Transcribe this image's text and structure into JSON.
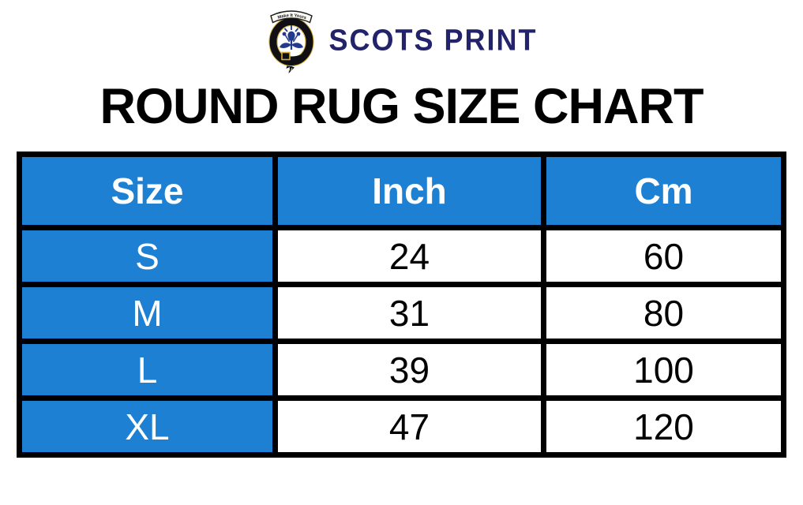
{
  "logo": {
    "brand_text": "SCOTS PRINT",
    "ribbon_text": "Make It Yours"
  },
  "title": "ROUND RUG SIZE CHART",
  "table": {
    "columns": [
      "Size",
      "Inch",
      "Cm"
    ],
    "rows": [
      [
        "S",
        "24",
        "60"
      ],
      [
        "M",
        "31",
        "80"
      ],
      [
        "L",
        "39",
        "100"
      ],
      [
        "XL",
        "47",
        "120"
      ]
    ]
  },
  "colors": {
    "accent_blue": "#1e80d2",
    "brand_navy": "#23236b",
    "border_black": "#000000",
    "header_text": "#ffffff",
    "body_text": "#000000"
  },
  "chart_data": {
    "type": "table",
    "title": "ROUND RUG SIZE CHART",
    "columns": [
      "Size",
      "Inch",
      "Cm"
    ],
    "rows": [
      [
        "S",
        24,
        60
      ],
      [
        "M",
        31,
        80
      ],
      [
        "L",
        39,
        100
      ],
      [
        "XL",
        47,
        120
      ]
    ]
  }
}
